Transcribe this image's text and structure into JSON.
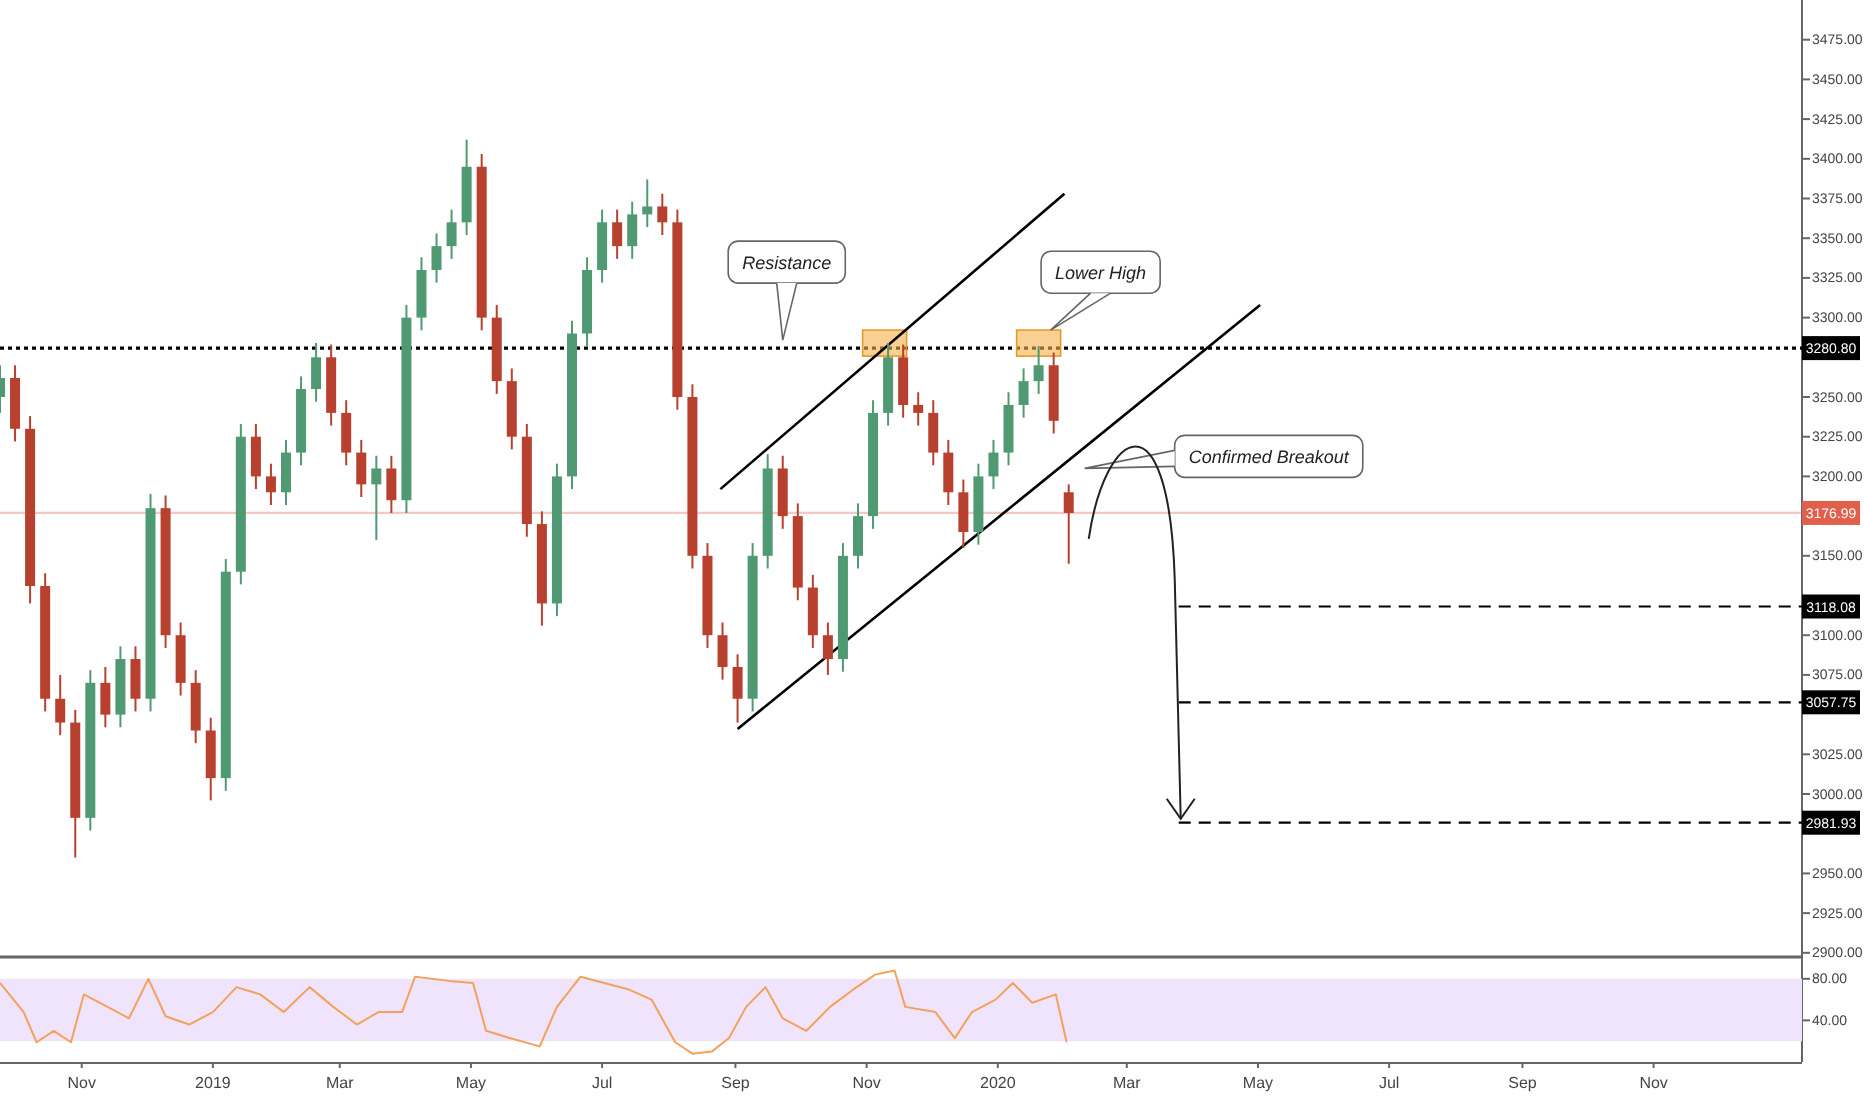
{
  "chart_data": [
    {
      "type": "candlestick",
      "tick_labels": "y",
      "xlim": [
        "2018-09-24",
        "2021-01-09"
      ],
      "ylim": [
        2898,
        3500
      ],
      "yticks": [
        {
          "value": 2900,
          "label": "2900.00"
        },
        {
          "value": 2925,
          "label": "2925.00"
        },
        {
          "value": 2950,
          "label": "2950.00"
        },
        {
          "value": 3000,
          "label": "3000.00"
        },
        {
          "value": 3025,
          "label": "3025.00"
        },
        {
          "value": 3075,
          "label": "3075.00"
        },
        {
          "value": 3100,
          "label": "3100.00"
        },
        {
          "value": 3150,
          "label": "3150.00"
        },
        {
          "value": 3200,
          "label": "3200.00"
        },
        {
          "value": 3225,
          "label": "3225.00"
        },
        {
          "value": 3250,
          "label": "3250.00"
        },
        {
          "value": 3300,
          "label": "3300.00"
        },
        {
          "value": 3325,
          "label": "3325.00"
        },
        {
          "value": 3350,
          "label": "3350.00"
        },
        {
          "value": 3375,
          "label": "3375.00"
        },
        {
          "value": 3400,
          "label": "3400.00"
        },
        {
          "value": 3425,
          "label": "3425.00"
        },
        {
          "value": 3450,
          "label": "3450.00"
        },
        {
          "value": 3475,
          "label": "3475.00"
        }
      ],
      "x": [
        "2018-09-24",
        "2018-10-01",
        "2018-10-08",
        "2018-10-15",
        "2018-10-22",
        "2018-10-29",
        "2018-11-05",
        "2018-11-12",
        "2018-11-19",
        "2018-11-26",
        "2018-12-03",
        "2018-12-10",
        "2018-12-17",
        "2018-12-24",
        "2018-12-31",
        "2019-01-07",
        "2019-01-14",
        "2019-01-21",
        "2019-01-28",
        "2019-02-04",
        "2019-02-11",
        "2019-02-18",
        "2019-02-25",
        "2019-03-04",
        "2019-03-11",
        "2019-03-18",
        "2019-03-25",
        "2019-04-01",
        "2019-04-08",
        "2019-04-15",
        "2019-04-22",
        "2019-04-29",
        "2019-05-06",
        "2019-05-13",
        "2019-05-20",
        "2019-05-27",
        "2019-06-03",
        "2019-06-10",
        "2019-06-17",
        "2019-06-24",
        "2019-07-01",
        "2019-07-08",
        "2019-07-15",
        "2019-07-22",
        "2019-07-29",
        "2019-08-05",
        "2019-08-12",
        "2019-08-19",
        "2019-08-26",
        "2019-09-02",
        "2019-09-09",
        "2019-09-16",
        "2019-09-23",
        "2019-09-30",
        "2019-10-07",
        "2019-10-14",
        "2019-10-21",
        "2019-10-28",
        "2019-11-04",
        "2019-11-11",
        "2019-11-18",
        "2019-11-25",
        "2019-12-02",
        "2019-12-09",
        "2019-12-16",
        "2019-12-23",
        "2019-12-30",
        "2020-01-06",
        "2020-01-13",
        "2020-01-20",
        "2020-01-27",
        "2020-02-03"
      ],
      "ohlc": [
        [
          3250,
          3270,
          3240,
          3262
        ],
        [
          3262,
          3270,
          3222,
          3230
        ],
        [
          3230,
          3238,
          3120,
          3131
        ],
        [
          3131,
          3139,
          3052,
          3060
        ],
        [
          3060,
          3075,
          3037,
          3045
        ],
        [
          3045,
          3053,
          2960,
          2985
        ],
        [
          2985,
          3078,
          2977,
          3070
        ],
        [
          3070,
          3080,
          3042,
          3050
        ],
        [
          3050,
          3093,
          3042,
          3085
        ],
        [
          3085,
          3093,
          3052,
          3060
        ],
        [
          3060,
          3189,
          3052,
          3180
        ],
        [
          3180,
          3188,
          3092,
          3100
        ],
        [
          3100,
          3108,
          3062,
          3070
        ],
        [
          3070,
          3078,
          3032,
          3040
        ],
        [
          3040,
          3048,
          2996,
          3010
        ],
        [
          3010,
          3148,
          3002,
          3140
        ],
        [
          3140,
          3233,
          3132,
          3225
        ],
        [
          3225,
          3233,
          3192,
          3200
        ],
        [
          3200,
          3208,
          3182,
          3190
        ],
        [
          3190,
          3223,
          3182,
          3215
        ],
        [
          3215,
          3263,
          3207,
          3255
        ],
        [
          3255,
          3284,
          3247,
          3275
        ],
        [
          3275,
          3283,
          3232,
          3240
        ],
        [
          3240,
          3248,
          3207,
          3215
        ],
        [
          3215,
          3223,
          3187,
          3195
        ],
        [
          3195,
          3213,
          3160,
          3205
        ],
        [
          3205,
          3213,
          3177,
          3185
        ],
        [
          3185,
          3308,
          3177,
          3300
        ],
        [
          3300,
          3338,
          3292,
          3330
        ],
        [
          3330,
          3353,
          3322,
          3345
        ],
        [
          3345,
          3368,
          3337,
          3360
        ],
        [
          3360,
          3412,
          3352,
          3395
        ],
        [
          3395,
          3403,
          3292,
          3300
        ],
        [
          3300,
          3308,
          3252,
          3260
        ],
        [
          3260,
          3268,
          3217,
          3225
        ],
        [
          3225,
          3233,
          3162,
          3170
        ],
        [
          3170,
          3178,
          3106,
          3120
        ],
        [
          3120,
          3208,
          3112,
          3200
        ],
        [
          3200,
          3298,
          3192,
          3290
        ],
        [
          3290,
          3338,
          3282,
          3330
        ],
        [
          3330,
          3368,
          3322,
          3360
        ],
        [
          3360,
          3368,
          3337,
          3345
        ],
        [
          3345,
          3373,
          3337,
          3365
        ],
        [
          3365,
          3387,
          3357,
          3370
        ],
        [
          3370,
          3378,
          3352,
          3360
        ],
        [
          3360,
          3368,
          3242,
          3250
        ],
        [
          3250,
          3258,
          3142,
          3150
        ],
        [
          3150,
          3158,
          3092,
          3100
        ],
        [
          3100,
          3108,
          3072,
          3080
        ],
        [
          3080,
          3088,
          3045,
          3060
        ],
        [
          3060,
          3158,
          3052,
          3150
        ],
        [
          3150,
          3214,
          3142,
          3205
        ],
        [
          3205,
          3213,
          3167,
          3175
        ],
        [
          3175,
          3183,
          3122,
          3130
        ],
        [
          3130,
          3138,
          3092,
          3100
        ],
        [
          3100,
          3108,
          3075,
          3085
        ],
        [
          3085,
          3158,
          3077,
          3150
        ],
        [
          3150,
          3183,
          3142,
          3175
        ],
        [
          3175,
          3248,
          3167,
          3240
        ],
        [
          3240,
          3284,
          3232,
          3275
        ],
        [
          3275,
          3283,
          3237,
          3245
        ],
        [
          3245,
          3253,
          3232,
          3240
        ],
        [
          3240,
          3248,
          3207,
          3215
        ],
        [
          3215,
          3223,
          3182,
          3190
        ],
        [
          3190,
          3198,
          3155,
          3165
        ],
        [
          3165,
          3208,
          3157,
          3200
        ],
        [
          3200,
          3223,
          3192,
          3215
        ],
        [
          3215,
          3253,
          3207,
          3245
        ],
        [
          3245,
          3268,
          3237,
          3260
        ],
        [
          3260,
          3282,
          3252,
          3270
        ],
        [
          3270,
          3278,
          3227,
          3235
        ],
        [
          3190,
          3195,
          3145,
          3177
        ]
      ],
      "series": [
        {
          "type": "line",
          "x": [
            "2019-08-25",
            "2020-02-01"
          ],
          "values": [
            3192,
            3378
          ],
          "color": "#000000"
        },
        {
          "type": "line",
          "x": [
            "2019-09-02",
            "2020-05-02"
          ],
          "values": [
            3041,
            3308
          ],
          "color": "#000000"
        }
      ],
      "ref_lines": [
        {
          "axis": "y",
          "value": 3280.8,
          "label": "3280.80",
          "color": "#000000",
          "line_style": "dotted"
        },
        {
          "axis": "y",
          "value": 3176.99,
          "label": "3176.99",
          "color": "#e0604c",
          "line_style": "solid"
        },
        {
          "axis": "y",
          "value": 3118.08,
          "label": "3118.08",
          "color": "#000000",
          "line_style": "dashed"
        },
        {
          "axis": "y",
          "value": 3057.75,
          "label": "3057.75",
          "color": "#000000",
          "line_style": "dashed"
        },
        {
          "axis": "y",
          "value": 2981.93,
          "label": "2981.93",
          "color": "#000000",
          "line_style": "dashed"
        }
      ],
      "annotations": [
        {
          "text": "Resistance",
          "x": "2019-09-23",
          "y": 3280.8
        },
        "Lower High",
        "Confirmed Breakout"
      ]
    },
    {
      "type": "line",
      "xlim": [
        "2018-09-24",
        "2021-01-09"
      ],
      "ylim": [
        0,
        100
      ],
      "yticks": [
        {
          "value": 80,
          "label": "80.00"
        },
        {
          "value": 40,
          "label": "40.00"
        }
      ],
      "xticks": [
        {
          "value": "2018-11-01",
          "label": "Nov"
        },
        {
          "value": "2019-01-01",
          "label": "2019"
        },
        {
          "value": "2019-03-01",
          "label": "Mar"
        },
        {
          "value": "2019-05-01",
          "label": "May"
        },
        {
          "value": "2019-07-01",
          "label": "Jul"
        },
        {
          "value": "2019-09-01",
          "label": "Sep"
        },
        {
          "value": "2019-11-01",
          "label": "Nov"
        },
        {
          "value": "2020-01-01",
          "label": "2020"
        },
        {
          "value": "2020-03-01",
          "label": "Mar"
        },
        {
          "value": "2020-05-01",
          "label": "May"
        },
        {
          "value": "2020-07-01",
          "label": "Jul"
        },
        {
          "value": "2020-09-01",
          "label": "Sep"
        },
        {
          "value": "2020-11-01",
          "label": "Nov"
        }
      ],
      "bands": [
        {
          "axis": "y",
          "from": 20,
          "to": 80,
          "color": "#efe4fc"
        }
      ],
      "x": [
        "2018-09-24",
        "2018-10-05",
        "2018-10-11",
        "2018-10-19",
        "2018-10-27",
        "2018-11-02",
        "2018-11-13",
        "2018-11-23",
        "2018-12-02",
        "2018-12-10",
        "2018-12-21",
        "2019-01-01",
        "2019-01-12",
        "2019-01-23",
        "2019-02-03",
        "2019-02-15",
        "2019-02-26",
        "2019-03-09",
        "2019-03-19",
        "2019-03-30",
        "2019-04-05",
        "2019-04-21",
        "2019-05-02",
        "2019-05-08",
        "2019-05-19",
        "2019-06-02",
        "2019-06-10",
        "2019-06-21",
        "2019-07-02",
        "2019-07-13",
        "2019-07-24",
        "2019-08-04",
        "2019-08-12",
        "2019-08-21",
        "2019-08-29",
        "2019-09-06",
        "2019-09-15",
        "2019-09-23",
        "2019-10-04",
        "2019-10-15",
        "2019-10-26",
        "2019-11-05",
        "2019-11-14",
        "2019-11-19",
        "2019-12-03",
        "2019-12-12",
        "2019-12-20",
        "2019-12-31",
        "2020-01-08",
        "2020-01-17",
        "2020-01-28",
        "2020-02-02"
      ],
      "series": [
        {
          "color": "#f2a25c",
          "values": [
            76,
            48,
            19,
            30,
            19,
            65,
            53,
            42,
            80,
            44,
            36,
            48,
            72,
            65,
            48,
            72,
            53,
            36,
            48,
            48,
            82,
            78,
            76,
            30,
            23,
            15,
            53,
            82,
            76,
            70,
            60,
            19,
            8,
            10,
            23,
            53,
            72,
            42,
            30,
            53,
            70,
            84,
            88,
            53,
            48,
            23,
            48,
            60,
            76,
            57,
            65,
            19
          ]
        }
      ]
    }
  ]
}
